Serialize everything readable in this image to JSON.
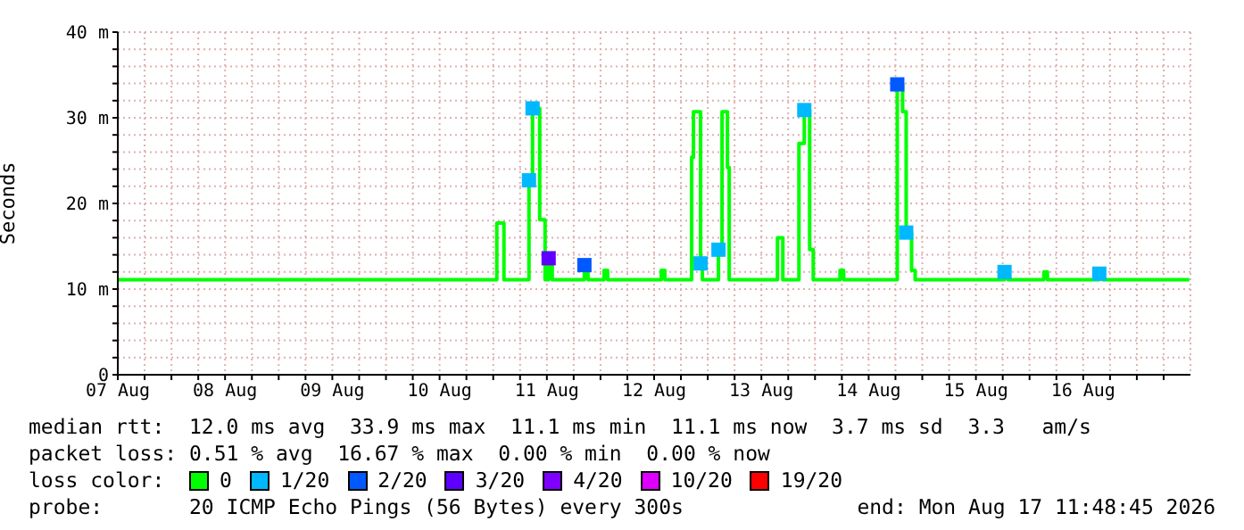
{
  "chart_data": {
    "type": "step",
    "ylabel": "Seconds",
    "legend_title": "loss color:",
    "legend": "bottom",
    "grid": true,
    "annotations": [
      "median rtt:  12.0 ms avg  33.9 ms max  11.1 ms min  11.1 ms now  3.7 ms sd  3.3   am/s",
      "packet loss: 0.51 % avg  16.67 % max  0.00 % min  0.00 % now",
      "probe:       20 ICMP Echo Pings (56 Bytes) every 300s",
      "end: Mon Aug 17 11:48:45 2026"
    ],
    "xlim": [
      "2026-08-07T12:00",
      "2026-08-17T12:00"
    ],
    "xticks": [
      {
        "value": "2026-08-07T12:00",
        "label": "07 Aug"
      },
      {
        "value": "2026-08-07T18:00",
        "label": null
      },
      {
        "value": "2026-08-08T00:00",
        "label": null
      },
      {
        "value": "2026-08-08T06:00",
        "label": null
      },
      {
        "value": "2026-08-08T12:00",
        "label": "08 Aug"
      },
      {
        "value": "2026-08-08T18:00",
        "label": null
      },
      {
        "value": "2026-08-09T00:00",
        "label": null
      },
      {
        "value": "2026-08-09T06:00",
        "label": null
      },
      {
        "value": "2026-08-09T12:00",
        "label": "09 Aug"
      },
      {
        "value": "2026-08-09T18:00",
        "label": null
      },
      {
        "value": "2026-08-10T00:00",
        "label": null
      },
      {
        "value": "2026-08-10T06:00",
        "label": null
      },
      {
        "value": "2026-08-10T12:00",
        "label": "10 Aug"
      },
      {
        "value": "2026-08-10T18:00",
        "label": null
      },
      {
        "value": "2026-08-11T00:00",
        "label": null
      },
      {
        "value": "2026-08-11T06:00",
        "label": null
      },
      {
        "value": "2026-08-11T12:00",
        "label": "11 Aug"
      },
      {
        "value": "2026-08-11T18:00",
        "label": null
      },
      {
        "value": "2026-08-12T00:00",
        "label": null
      },
      {
        "value": "2026-08-12T06:00",
        "label": null
      },
      {
        "value": "2026-08-12T12:00",
        "label": "12 Aug"
      },
      {
        "value": "2026-08-12T18:00",
        "label": null
      },
      {
        "value": "2026-08-13T00:00",
        "label": null
      },
      {
        "value": "2026-08-13T06:00",
        "label": null
      },
      {
        "value": "2026-08-13T12:00",
        "label": "13 Aug"
      },
      {
        "value": "2026-08-13T18:00",
        "label": null
      },
      {
        "value": "2026-08-14T00:00",
        "label": null
      },
      {
        "value": "2026-08-14T06:00",
        "label": null
      },
      {
        "value": "2026-08-14T12:00",
        "label": "14 Aug"
      },
      {
        "value": "2026-08-14T18:00",
        "label": null
      },
      {
        "value": "2026-08-15T00:00",
        "label": null
      },
      {
        "value": "2026-08-15T06:00",
        "label": null
      },
      {
        "value": "2026-08-15T12:00",
        "label": "15 Aug"
      },
      {
        "value": "2026-08-15T18:00",
        "label": null
      },
      {
        "value": "2026-08-16T00:00",
        "label": null
      },
      {
        "value": "2026-08-16T06:00",
        "label": null
      },
      {
        "value": "2026-08-16T12:00",
        "label": "16 Aug"
      },
      {
        "value": "2026-08-16T18:00",
        "label": null
      },
      {
        "value": "2026-08-17T00:00",
        "label": null
      },
      {
        "value": "2026-08-17T06:00",
        "label": null
      }
    ],
    "ylim": [
      0,
      40
    ],
    "yticks": [
      0,
      {
        "value": 2,
        "label": null
      },
      {
        "value": 4,
        "label": null
      },
      {
        "value": 6,
        "label": null
      },
      {
        "value": 8,
        "label": null
      },
      {
        "value": 10,
        "label": "10 m"
      },
      {
        "value": 12,
        "label": null
      },
      {
        "value": 14,
        "label": null
      },
      {
        "value": 16,
        "label": null
      },
      {
        "value": 18,
        "label": null
      },
      {
        "value": 20,
        "label": "20 m"
      },
      {
        "value": 22,
        "label": null
      },
      {
        "value": 24,
        "label": null
      },
      {
        "value": 26,
        "label": null
      },
      {
        "value": 28,
        "label": null
      },
      {
        "value": 30,
        "label": "30 m"
      },
      {
        "value": 32,
        "label": null
      },
      {
        "value": 34,
        "label": null
      },
      {
        "value": 36,
        "label": null
      },
      {
        "value": 38,
        "label": null
      },
      {
        "value": 40,
        "label": "40 m"
      }
    ],
    "series": [
      {
        "name": "0",
        "color": "#00ff00",
        "x": [
          "2026-08-07T12:00",
          "2026-08-11T00:48",
          "2026-08-11T02:24",
          "2026-08-11T08:00",
          "2026-08-11T08:48",
          "2026-08-11T10:24",
          "2026-08-11T11:36",
          "2026-08-11T12:24",
          "2026-08-11T13:12",
          "2026-08-11T20:24",
          "2026-08-11T21:12",
          "2026-08-12T00:48",
          "2026-08-12T01:36",
          "2026-08-12T13:36",
          "2026-08-12T14:24",
          "2026-08-12T20:24",
          "2026-08-12T20:48",
          "2026-08-12T22:24",
          "2026-08-12T22:48",
          "2026-08-13T02:24",
          "2026-08-13T03:12",
          "2026-08-13T04:24",
          "2026-08-13T04:48",
          "2026-08-13T15:36",
          "2026-08-13T16:48",
          "2026-08-13T20:24",
          "2026-08-13T21:36",
          "2026-08-13T22:48",
          "2026-08-13T23:36",
          "2026-08-14T05:36",
          "2026-08-14T06:24",
          "2026-08-14T18:24",
          "2026-08-14T19:36",
          "2026-08-14T20:24",
          "2026-08-14T21:36",
          "2026-08-14T22:24",
          "2026-08-15T18:24",
          "2026-08-15T19:12",
          "2026-08-16T03:12",
          "2026-08-16T04:00",
          "2026-08-16T15:36",
          "2026-08-16T16:24",
          "2026-08-17T11:45"
        ],
        "values": [
          11.1,
          17.7,
          11.1,
          22.7,
          31.1,
          18.1,
          11.1,
          13.6,
          11.1,
          12.8,
          11.1,
          12.2,
          11.1,
          12.2,
          11.1,
          25.4,
          30.7,
          13.0,
          11.1,
          14.6,
          30.7,
          24.2,
          11.1,
          16.0,
          11.1,
          27.0,
          30.9,
          14.6,
          11.1,
          12.2,
          11.1,
          33.9,
          30.7,
          16.6,
          12.2,
          11.1,
          12.0,
          11.1,
          12.0,
          11.1,
          11.8,
          11.1,
          11.1
        ]
      },
      {
        "name": "1/20",
        "type": "scatter",
        "marker": "square",
        "color": "#00b8ff",
        "x": [
          "2026-08-11T08:00",
          "2026-08-11T08:48",
          "2026-08-12T22:24",
          "2026-08-13T02:24",
          "2026-08-13T21:36",
          "2026-08-14T20:24",
          "2026-08-15T18:24",
          "2026-08-16T15:36"
        ],
        "values": [
          22.7,
          31.1,
          13.0,
          14.6,
          30.9,
          16.6,
          12.0,
          11.8
        ]
      },
      {
        "name": "2/20",
        "type": "scatter",
        "marker": "square",
        "color": "#0059ff",
        "x": [
          "2026-08-11T20:24",
          "2026-08-14T18:24"
        ],
        "values": [
          12.8,
          33.9
        ]
      },
      {
        "name": "3/20",
        "type": "scatter",
        "marker": "square",
        "color": "#5e00ff",
        "x": [
          "2026-08-11T12:24"
        ],
        "values": [
          13.6
        ]
      },
      {
        "name": "4/20",
        "type": "scatter",
        "color": "#7e00ff"
      },
      {
        "name": "10/20",
        "type": "scatter",
        "color": "#dd00ff"
      },
      {
        "name": "19/20",
        "type": "scatter",
        "color": "#ff0000"
      }
    ]
  }
}
